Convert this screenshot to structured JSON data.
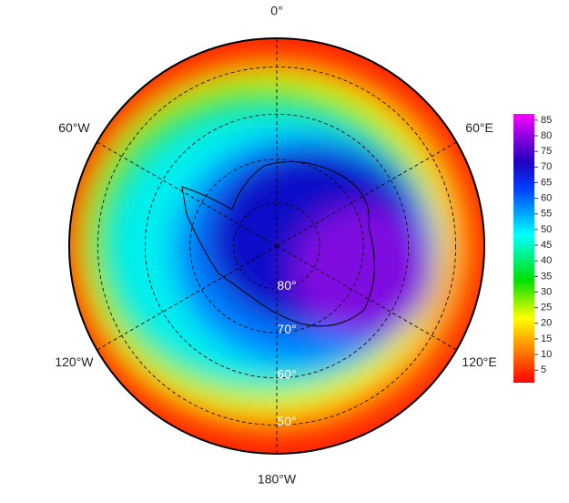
{
  "map": {
    "projection": "south-polar-stereographic",
    "longitude_labels": [
      {
        "value": 0,
        "label": "0°"
      },
      {
        "value": 60,
        "label": "60°E"
      },
      {
        "value": 120,
        "label": "120°E"
      },
      {
        "value": 180,
        "label": "180°W"
      },
      {
        "value": -120,
        "label": "120°W"
      },
      {
        "value": -60,
        "label": "60°W"
      }
    ],
    "latitude_labels": [
      {
        "value": 80,
        "label": "80°"
      },
      {
        "value": 70,
        "label": "70°"
      },
      {
        "value": 60,
        "label": "60°"
      },
      {
        "value": 50,
        "label": "50°"
      }
    ],
    "colorbar": {
      "clim": [
        1,
        87
      ],
      "ticks": [
        5,
        10,
        15,
        20,
        25,
        30,
        35,
        40,
        45,
        50,
        55,
        60,
        65,
        70,
        75,
        80,
        85
      ]
    }
  }
}
